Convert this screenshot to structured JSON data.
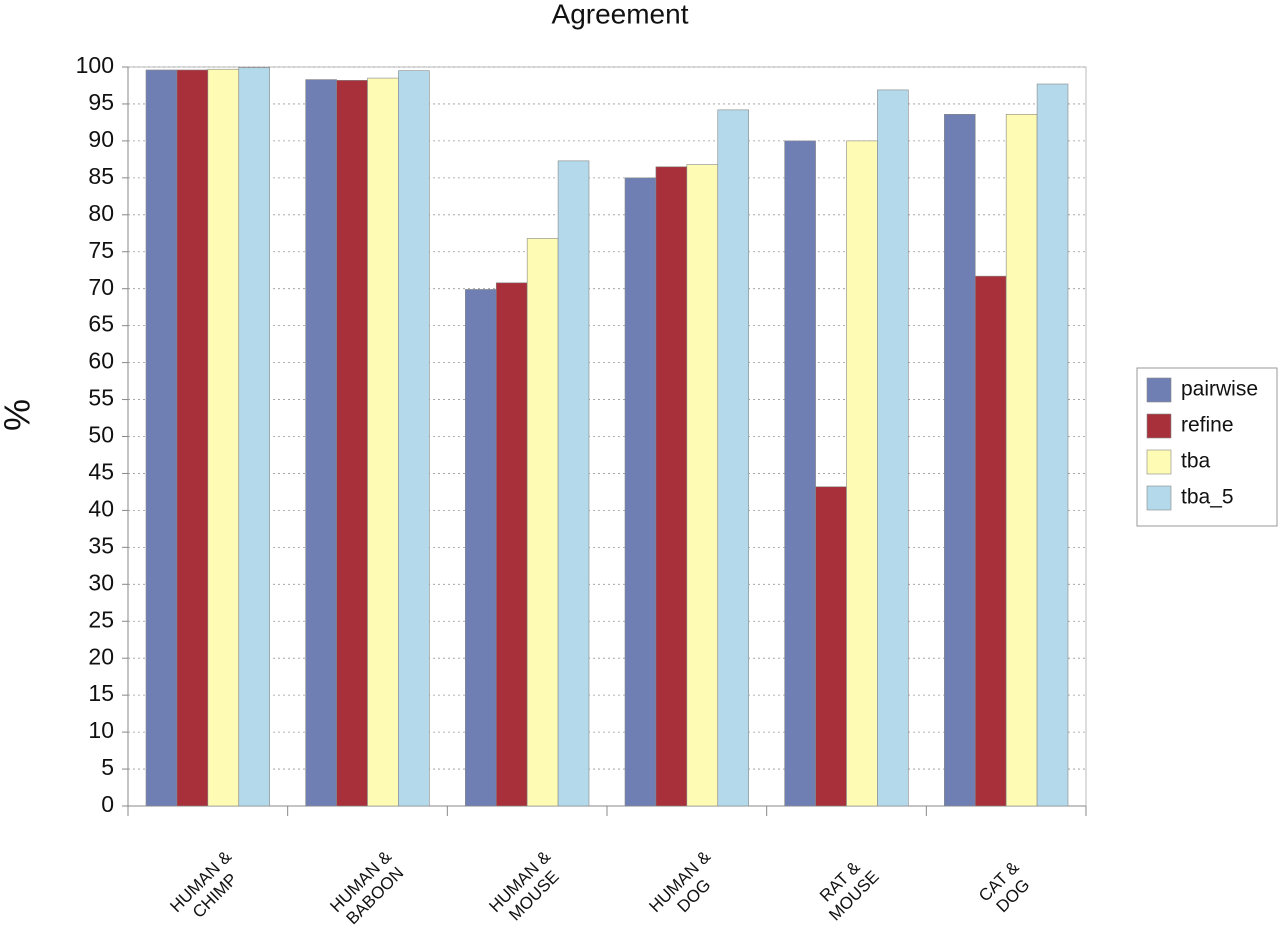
{
  "chart_data": {
    "type": "bar",
    "title": "Agreement",
    "y_label": "%",
    "categories": [
      "HUMAN &\nCHIMP",
      "HUMAN &\nBABOON",
      "HUMAN &\nMOUSE",
      "HUMAN &\nDOG",
      "RAT &\nMOUSE",
      "CAT &\nDOG"
    ],
    "series": [
      {
        "name": "pairwise",
        "color": "#6f7fb4",
        "values": [
          99.6,
          98.3,
          69.9,
          85.0,
          90.0,
          93.6
        ]
      },
      {
        "name": "refine",
        "color": "#a8303a",
        "values": [
          99.6,
          98.2,
          70.8,
          86.5,
          43.2,
          71.7
        ]
      },
      {
        "name": "tba",
        "color": "#fdfbb4",
        "values": [
          99.7,
          98.5,
          76.8,
          86.8,
          90.0,
          93.6
        ]
      },
      {
        "name": "tba_5",
        "color": "#b3d9ea",
        "values": [
          99.9,
          99.5,
          87.3,
          94.2,
          96.9,
          97.7
        ]
      }
    ],
    "ylim": [
      0,
      100
    ],
    "yticks": [
      0,
      5,
      10,
      15,
      20,
      25,
      30,
      35,
      40,
      45,
      50,
      55,
      60,
      65,
      70,
      75,
      80,
      85,
      90,
      95,
      100
    ],
    "grid": true,
    "legend_position": "right"
  }
}
